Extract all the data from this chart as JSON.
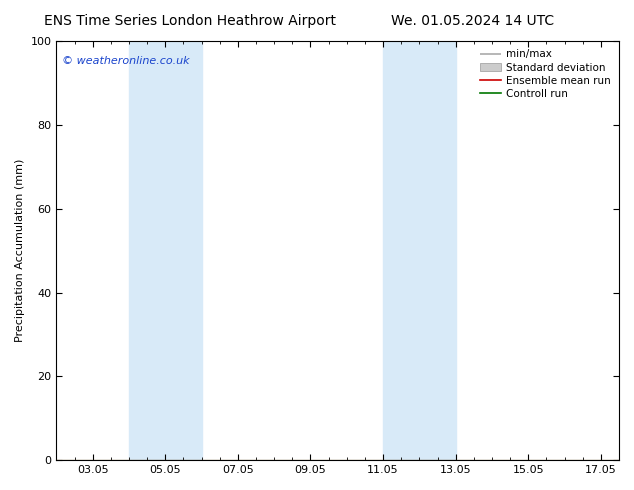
{
  "title_left": "ENS Time Series London Heathrow Airport",
  "title_right": "We. 01.05.2024 14 UTC",
  "ylabel": "Precipitation Accumulation (mm)",
  "ylim": [
    0,
    100
  ],
  "yticks": [
    0,
    20,
    40,
    60,
    80,
    100
  ],
  "xtick_labels": [
    "03.05",
    "05.05",
    "07.05",
    "09.05",
    "11.05",
    "13.05",
    "15.05",
    "17.05"
  ],
  "xtick_positions": [
    1.0,
    3.0,
    5.0,
    7.0,
    9.0,
    11.0,
    13.0,
    15.0
  ],
  "xlim": [
    0,
    15.5
  ],
  "shade_bands": [
    {
      "x_start": 2.0,
      "x_end": 4.0,
      "color": "#d8eaf8"
    },
    {
      "x_start": 9.0,
      "x_end": 11.0,
      "color": "#d8eaf8"
    }
  ],
  "watermark_text": "© weatheronline.co.uk",
  "watermark_color": "#1a44cc",
  "legend_labels": [
    "min/max",
    "Standard deviation",
    "Ensemble mean run",
    "Controll run"
  ],
  "legend_line_colors": [
    "#aaaaaa",
    "#cccccc",
    "#cc0000",
    "#007700"
  ],
  "background_color": "#ffffff",
  "plot_bg_color": "#ffffff",
  "title_fontsize": 10,
  "axis_label_fontsize": 8,
  "tick_fontsize": 8,
  "legend_fontsize": 7.5
}
